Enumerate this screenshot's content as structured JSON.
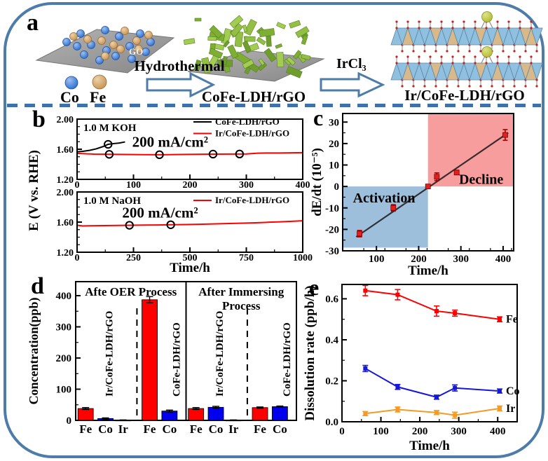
{
  "figure": {
    "panel_labels": {
      "a": "a",
      "b": "b",
      "c": "c",
      "d": "d",
      "e": "e"
    },
    "colors": {
      "border": "#4d7ca8",
      "dash_line": "#3e6fae",
      "red": "#fe0000",
      "blue": "#0000ee",
      "orange": "#f59a23",
      "shade_blue": "#9dbfdb",
      "shade_red": "#f79d9d",
      "point_red": "#e32020",
      "co_sphere": "#2e6fd0",
      "fe_sphere": "#c99355",
      "ir_sphere": "#b4bc2f",
      "nanosheet_green": "#8fb83c",
      "polyhedra_blue": "#8fc0e0",
      "polyhedra_tan": "#d9b88a"
    }
  },
  "panel_a": {
    "label": "a",
    "go_label": "GO",
    "co_label": "Co",
    "fe_label": "Fe",
    "arrow1_label": "Hydrothermal",
    "arrow2_label": "IrCl₃",
    "product1": "CoFe-LDH/rGO",
    "product2": "Ir/CoFe-LDH/rGO"
  },
  "chart_data": [
    {
      "id": "b_top",
      "type": "line",
      "inside_title": "1.0 M KOH",
      "annotation": {
        "text": "200 mA/cm²",
        "color": "#fe0000",
        "pos": [
          165,
          1.633
        ],
        "size": 21
      },
      "xlim": [
        0,
        400
      ],
      "xticks": [
        0,
        100,
        200,
        300,
        400
      ],
      "xtick_labels": [
        "0",
        "100",
        "200",
        "300",
        "400"
      ],
      "ylim": [
        1.2,
        2.0
      ],
      "yticks": [
        1.2,
        1.6,
        2.0
      ],
      "ytick_labels": [
        "1.20",
        "1.60",
        "2.00"
      ],
      "legend": true,
      "series": [
        {
          "name": "CoFe-LDH/rGO",
          "color": "#000000",
          "x": [
            0,
            10,
            22,
            34,
            46,
            55,
            65,
            75,
            85
          ],
          "y": [
            1.565,
            1.572,
            1.585,
            1.605,
            1.635,
            1.665,
            1.675,
            1.683,
            1.697
          ],
          "marker_x": [
            55
          ]
        },
        {
          "name": "Ir/CoFe-LDH/rGO",
          "color": "#fe0000",
          "x": [
            0,
            30,
            60,
            90,
            120,
            150,
            180,
            210,
            240,
            270,
            300,
            320,
            335,
            360,
            380,
            400
          ],
          "y": [
            1.545,
            1.535,
            1.532,
            1.53,
            1.528,
            1.527,
            1.53,
            1.532,
            1.535,
            1.536,
            1.537,
            1.548,
            1.55,
            1.55,
            1.552,
            1.555
          ],
          "marker_x": [
            57,
            146,
            241,
            288
          ]
        }
      ]
    },
    {
      "id": "b_bottom",
      "type": "line",
      "inside_title": "1.0 M NaOH",
      "annotation": {
        "text": "200 mA/cm²",
        "color": "#fe0000",
        "pos": [
          368,
          1.66
        ],
        "size": 21
      },
      "xlabel": "Time/h",
      "ylabel": "E (V vs. RHE)",
      "xlim": [
        0,
        1000
      ],
      "xticks": [
        0,
        250,
        500,
        750,
        1000
      ],
      "xtick_labels": [
        "0",
        "250",
        "500",
        "750",
        "1000"
      ],
      "ylim": [
        1.2,
        2.0
      ],
      "yticks": [
        1.2,
        1.6,
        2.0
      ],
      "ytick_labels": [
        "1.20",
        "1.60",
        "2.00"
      ],
      "legend": true,
      "series": [
        {
          "name": "Ir/CoFe-LDH/rGO",
          "color": "#fe0000",
          "x": [
            0,
            25,
            60,
            120,
            180,
            240,
            300,
            360,
            420,
            480,
            540,
            600,
            660,
            720,
            780,
            840,
            900,
            950,
            1000
          ],
          "y": [
            1.558,
            1.549,
            1.551,
            1.554,
            1.556,
            1.558,
            1.56,
            1.562,
            1.565,
            1.568,
            1.571,
            1.576,
            1.58,
            1.585,
            1.59,
            1.597,
            1.604,
            1.61,
            1.617
          ],
          "marker_x": [
            232,
            415
          ]
        }
      ]
    },
    {
      "id": "c",
      "type": "scatter",
      "xlabel": "Time/h",
      "ylabel": "dE/dt (10⁻⁵)",
      "xlim": [
        20,
        425
      ],
      "xticks": [
        100,
        200,
        300,
        400
      ],
      "xtick_labels": [
        "100",
        "200",
        "300",
        "400"
      ],
      "ylim": [
        -30,
        34
      ],
      "yticks": [
        -30,
        -20,
        -10,
        0,
        10,
        20,
        30
      ],
      "ytick_labels": [
        "-30",
        "-20",
        "-10",
        "0",
        "10",
        "20",
        "30"
      ],
      "regions": [
        {
          "label": "Activation",
          "x": [
            20,
            222
          ],
          "y": [
            -28.5,
            0
          ],
          "color": "#9dbfdb",
          "label_pos": [
            118,
            -5.5
          ],
          "label_size": 20
        },
        {
          "label": "Decline",
          "x": [
            222,
            425
          ],
          "y": [
            0,
            34
          ],
          "color": "#f79d9d",
          "label_pos": [
            348,
            3.2
          ],
          "label_size": 20
        }
      ],
      "fit_line": {
        "x": [
          52,
          412
        ],
        "y": [
          -23.5,
          25
        ],
        "color": "#1a1a1a"
      },
      "points": {
        "x": [
          60,
          140,
          222,
          243,
          290,
          405
        ],
        "y": [
          -22,
          -10,
          0,
          4.5,
          6.5,
          24
        ],
        "err": [
          1.5,
          1.5,
          0.6,
          1.8,
          1.0,
          2.5
        ],
        "color": "#e32020"
      }
    },
    {
      "id": "d",
      "type": "bar",
      "ylabel": "Concentration(ppb)",
      "ylim": [
        0,
        445
      ],
      "yticks": [
        0,
        100,
        200,
        300,
        400
      ],
      "ytick_labels": [
        "0",
        "100",
        "200",
        "300",
        "400"
      ],
      "sections": [
        {
          "title_lines": [
            "Afte OER Process"
          ],
          "groups": [
            {
              "label": "Ir/CoFe-LDH/rGO",
              "bars": [
                {
                  "cat": "Fe",
                  "color": "#fe0000",
                  "value": 38,
                  "err": 3
                },
                {
                  "cat": "Co",
                  "color": "#0000ee",
                  "value": 6,
                  "err": 2
                },
                {
                  "cat": "Ir",
                  "color": "#1a1a1a",
                  "value": 1,
                  "err": 0.5
                }
              ]
            },
            {
              "label": "CoFe-LDH/rGO",
              "bars": [
                {
                  "cat": "Fe",
                  "color": "#fe0000",
                  "value": 387,
                  "err": 10
                },
                {
                  "cat": "Co",
                  "color": "#0000ee",
                  "value": 30,
                  "err": 3
                }
              ]
            }
          ]
        },
        {
          "title_lines": [
            "After Immersing",
            "Process"
          ],
          "groups": [
            {
              "label": "Ir/CoFe-LDH/rGO",
              "bars": [
                {
                  "cat": "Fe",
                  "color": "#fe0000",
                  "value": 38,
                  "err": 3
                },
                {
                  "cat": "Co",
                  "color": "#0000ee",
                  "value": 42,
                  "err": 3
                },
                {
                  "cat": "Ir",
                  "color": "#1a1a1a",
                  "value": 1,
                  "err": 0.5
                }
              ]
            },
            {
              "label": "CoFe-LDH/rGO",
              "bars": [
                {
                  "cat": "Fe",
                  "color": "#fe0000",
                  "value": 41,
                  "err": 2
                },
                {
                  "cat": "Co",
                  "color": "#0000ee",
                  "value": 44,
                  "err": 2
                }
              ]
            }
          ]
        }
      ]
    },
    {
      "id": "e",
      "type": "line",
      "xlabel": "Time/h",
      "ylabel": "Dissolution rate (ppb/h)",
      "xlim": [
        0,
        450
      ],
      "xticks": [
        0,
        100,
        200,
        300,
        400
      ],
      "xtick_labels": [
        "0",
        "100",
        "200",
        "300",
        "400"
      ],
      "ylim": [
        0,
        0.67
      ],
      "yticks": [
        0.0,
        0.2,
        0.4,
        0.6
      ],
      "ytick_labels": [
        "0.0",
        "0.2",
        "0.4",
        "0.6"
      ],
      "legend": false,
      "series": [
        {
          "name": "Fe",
          "end_label": "Fe",
          "color": "#fe0000",
          "x": [
            60,
            143,
            243,
            290,
            405
          ],
          "y": [
            0.64,
            0.62,
            0.54,
            0.53,
            0.5
          ],
          "err": [
            0.025,
            0.025,
            0.025,
            0.015,
            0.012
          ]
        },
        {
          "name": "Co",
          "end_label": "Co",
          "color": "#1616dd",
          "x": [
            60,
            143,
            243,
            290,
            405
          ],
          "y": [
            0.26,
            0.17,
            0.12,
            0.165,
            0.15
          ],
          "err": [
            0.015,
            0.012,
            0.01,
            0.015,
            0.01
          ]
        },
        {
          "name": "Ir",
          "end_label": "Ir",
          "color": "#f59a23",
          "x": [
            60,
            143,
            243,
            290,
            405
          ],
          "y": [
            0.04,
            0.06,
            0.045,
            0.032,
            0.065
          ],
          "err": [
            0.01,
            0.012,
            0.01,
            0.015,
            0.012
          ]
        }
      ]
    }
  ]
}
